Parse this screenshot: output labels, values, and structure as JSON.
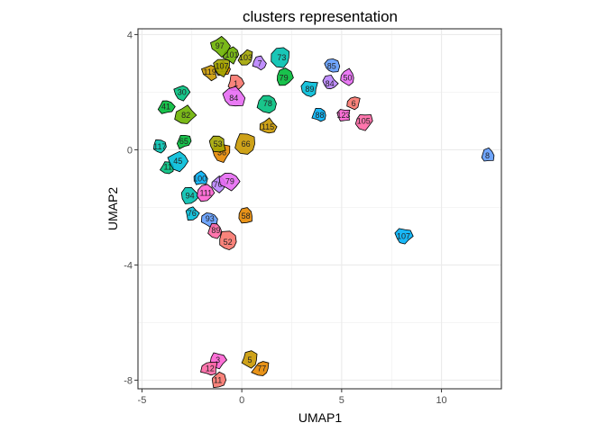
{
  "chart_data": {
    "type": "scatter",
    "title": "clusters representation",
    "xlabel": "UMAP1",
    "ylabel": "UMAP2",
    "xlim": [
      -5.2,
      13.0
    ],
    "ylim": [
      -8.3,
      4.2
    ],
    "xticks": [
      -5,
      0,
      5,
      10
    ],
    "yticks": [
      -8,
      -4,
      0,
      4
    ],
    "xtick_labels": [
      "-5",
      "0",
      "5",
      "10"
    ],
    "ytick_labels": [
      "-8",
      "-4",
      "0",
      "4"
    ],
    "grid": true,
    "legend": "none",
    "palette": [
      "#F8766D",
      "#E58700",
      "#C99800",
      "#A3A500",
      "#6BB100",
      "#00BA38",
      "#00BF7D",
      "#00C0AF",
      "#00BCD8",
      "#00B0F6",
      "#619CFF",
      "#B983FF",
      "#E76BF3",
      "#FD61D1",
      "#FF67A4"
    ],
    "clusters": [
      {
        "label": "1",
        "x": -0.3,
        "y": 2.3
      },
      {
        "label": "111",
        "x": -1.0,
        "y": 2.8
      },
      {
        "label": "119",
        "x": -1.6,
        "y": 2.7
      },
      {
        "label": "107",
        "x": -1.0,
        "y": 2.9
      },
      {
        "label": "101",
        "x": -0.5,
        "y": 3.3
      },
      {
        "label": "79",
        "x": 2.1,
        "y": 2.5
      },
      {
        "label": "78",
        "x": 1.3,
        "y": 1.6
      },
      {
        "label": "73",
        "x": 2.0,
        "y": 3.2
      },
      {
        "label": "89",
        "x": 3.4,
        "y": 2.1
      },
      {
        "label": "88",
        "x": 3.9,
        "y": 1.2
      },
      {
        "label": "85",
        "x": 4.5,
        "y": 2.9
      },
      {
        "label": "84",
        "x": 4.4,
        "y": 2.3
      },
      {
        "label": "50",
        "x": 5.3,
        "y": 2.5
      },
      {
        "label": "123",
        "x": 5.1,
        "y": 1.2
      },
      {
        "label": "105",
        "x": 6.1,
        "y": 1.0
      },
      {
        "label": "6",
        "x": 5.6,
        "y": 1.6
      },
      {
        "label": "36",
        "x": -1.0,
        "y": -0.1
      },
      {
        "label": "66",
        "x": 0.2,
        "y": 0.2
      },
      {
        "label": "53",
        "x": -1.2,
        "y": 0.2
      },
      {
        "label": "82",
        "x": -2.8,
        "y": 1.2
      },
      {
        "label": "65",
        "x": -2.9,
        "y": 0.3
      },
      {
        "label": "30",
        "x": -3.0,
        "y": 2.0
      },
      {
        "label": "94",
        "x": -2.6,
        "y": -1.6
      },
      {
        "label": "76",
        "x": -2.5,
        "y": -2.2
      },
      {
        "label": "100",
        "x": -2.1,
        "y": -1.0
      },
      {
        "label": "93",
        "x": -1.6,
        "y": -2.4
      },
      {
        "label": "70",
        "x": -1.2,
        "y": -1.2
      },
      {
        "label": "79",
        "x": -0.6,
        "y": -1.1
      },
      {
        "label": "111",
        "x": -1.8,
        "y": -1.5
      },
      {
        "label": "89",
        "x": -1.3,
        "y": -2.8
      },
      {
        "label": "52",
        "x": -0.7,
        "y": -3.2
      },
      {
        "label": "58",
        "x": 0.2,
        "y": -2.3
      },
      {
        "label": "115",
        "x": 1.3,
        "y": 0.8
      },
      {
        "label": "103",
        "x": 0.2,
        "y": 3.2
      },
      {
        "label": "97",
        "x": -1.1,
        "y": 3.6
      },
      {
        "label": "41",
        "x": -3.8,
        "y": 1.5
      },
      {
        "label": "11",
        "x": -3.7,
        "y": -0.6
      },
      {
        "label": "117",
        "x": -4.1,
        "y": 0.1
      },
      {
        "label": "45",
        "x": -3.2,
        "y": -0.4
      },
      {
        "label": "107",
        "x": 8.1,
        "y": -3.0
      },
      {
        "label": "8",
        "x": 12.3,
        "y": -0.2
      },
      {
        "label": "7",
        "x": 0.9,
        "y": 3.0
      },
      {
        "label": "84",
        "x": -0.4,
        "y": 1.8
      },
      {
        "label": "3",
        "x": -1.2,
        "y": -7.3
      },
      {
        "label": "12",
        "x": -1.6,
        "y": -7.6
      },
      {
        "label": "11",
        "x": -1.2,
        "y": -8.0
      },
      {
        "label": "77",
        "x": 1.0,
        "y": -7.6
      },
      {
        "label": "5",
        "x": 0.4,
        "y": -7.3
      }
    ]
  }
}
